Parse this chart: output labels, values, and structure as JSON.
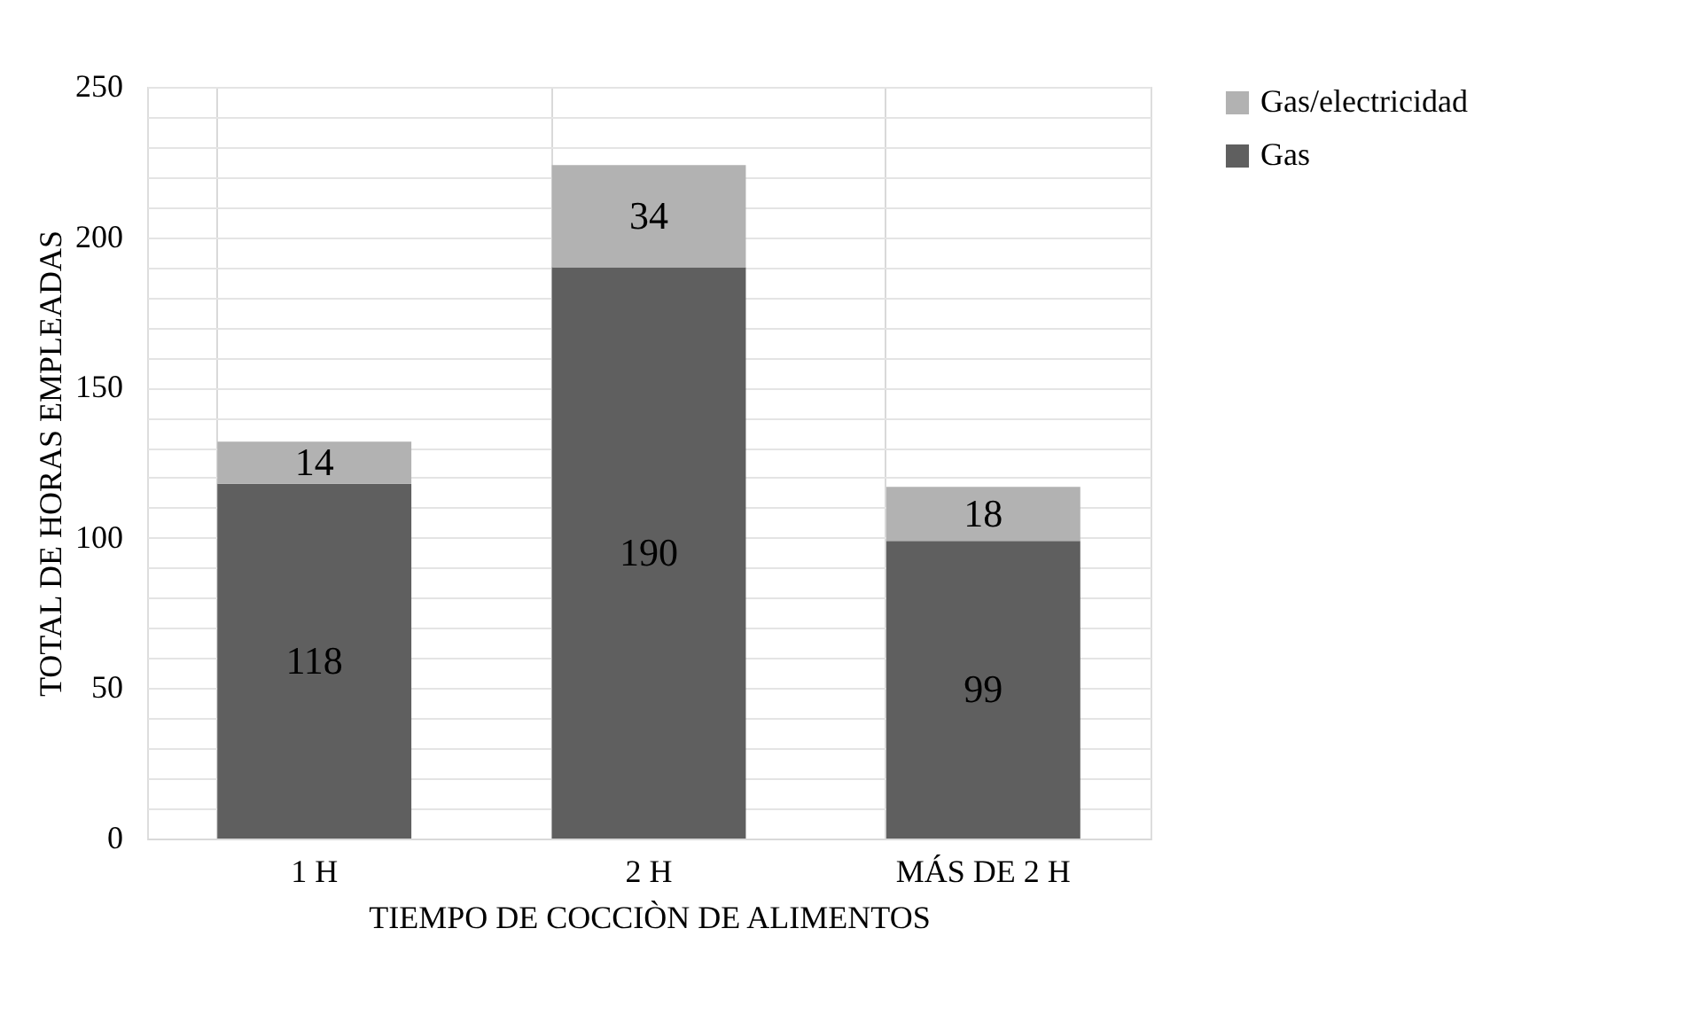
{
  "chart_data": {
    "type": "bar",
    "stacked": true,
    "xlabel": "TIEMPO DE COCCIÒN DE ALIMENTOS",
    "ylabel": "TOTAL DE HORAS EMPLEADAS",
    "categories": [
      "1 H",
      "2 H",
      "MÁS DE 2 H"
    ],
    "series": [
      {
        "name": "Gas",
        "color": "#5f5f5f",
        "values": [
          118,
          190,
          99
        ]
      },
      {
        "name": "Gas/electricidad",
        "color": "#b2b2b2",
        "values": [
          14,
          34,
          18
        ]
      }
    ],
    "ylim": [
      0,
      250
    ],
    "yticks": [
      0,
      {
        "value": 10,
        "label": null
      },
      {
        "value": 20,
        "label": null
      },
      {
        "value": 30,
        "label": null
      },
      {
        "value": 40,
        "label": null
      },
      50,
      {
        "value": 60,
        "label": null
      },
      {
        "value": 70,
        "label": null
      },
      {
        "value": 80,
        "label": null
      },
      {
        "value": 90,
        "label": null
      },
      100,
      {
        "value": 110,
        "label": null
      },
      {
        "value": 120,
        "label": null
      },
      {
        "value": 130,
        "label": null
      },
      {
        "value": 140,
        "label": null
      },
      150,
      {
        "value": 160,
        "label": null
      },
      {
        "value": 170,
        "label": null
      },
      {
        "value": 180,
        "label": null
      },
      {
        "value": 190,
        "label": null
      },
      200,
      {
        "value": 210,
        "label": null
      },
      {
        "value": 220,
        "label": null
      },
      {
        "value": 230,
        "label": null
      },
      {
        "value": 240,
        "label": null
      },
      250
    ],
    "grid": true,
    "legend": "right",
    "data_labels": true
  }
}
